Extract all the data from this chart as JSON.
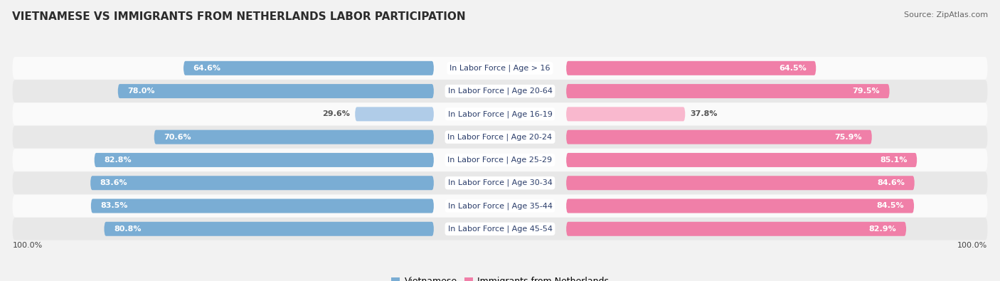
{
  "title": "VIETNAMESE VS IMMIGRANTS FROM NETHERLANDS LABOR PARTICIPATION",
  "source": "Source: ZipAtlas.com",
  "categories": [
    "In Labor Force | Age > 16",
    "In Labor Force | Age 20-64",
    "In Labor Force | Age 16-19",
    "In Labor Force | Age 20-24",
    "In Labor Force | Age 25-29",
    "In Labor Force | Age 30-34",
    "In Labor Force | Age 35-44",
    "In Labor Force | Age 45-54"
  ],
  "vietnamese": [
    64.6,
    78.0,
    29.6,
    70.6,
    82.8,
    83.6,
    83.5,
    80.8
  ],
  "netherlands": [
    64.5,
    79.5,
    37.8,
    75.9,
    85.1,
    84.6,
    84.5,
    82.9
  ],
  "viet_color": "#7aadd4",
  "viet_color_light": "#b0cce8",
  "neth_color": "#f07fa8",
  "neth_color_light": "#f9b8ce",
  "background_color": "#f2f2f2",
  "row_bg_light": "#fafafa",
  "row_bg_dark": "#e8e8e8",
  "max_val": 100.0,
  "legend_viet": "Vietnamese",
  "legend_neth": "Immigrants from Netherlands",
  "light_threshold": 50.0,
  "title_fontsize": 11,
  "source_fontsize": 8,
  "label_fontsize": 8,
  "cat_fontsize": 8,
  "axis_fontsize": 8
}
